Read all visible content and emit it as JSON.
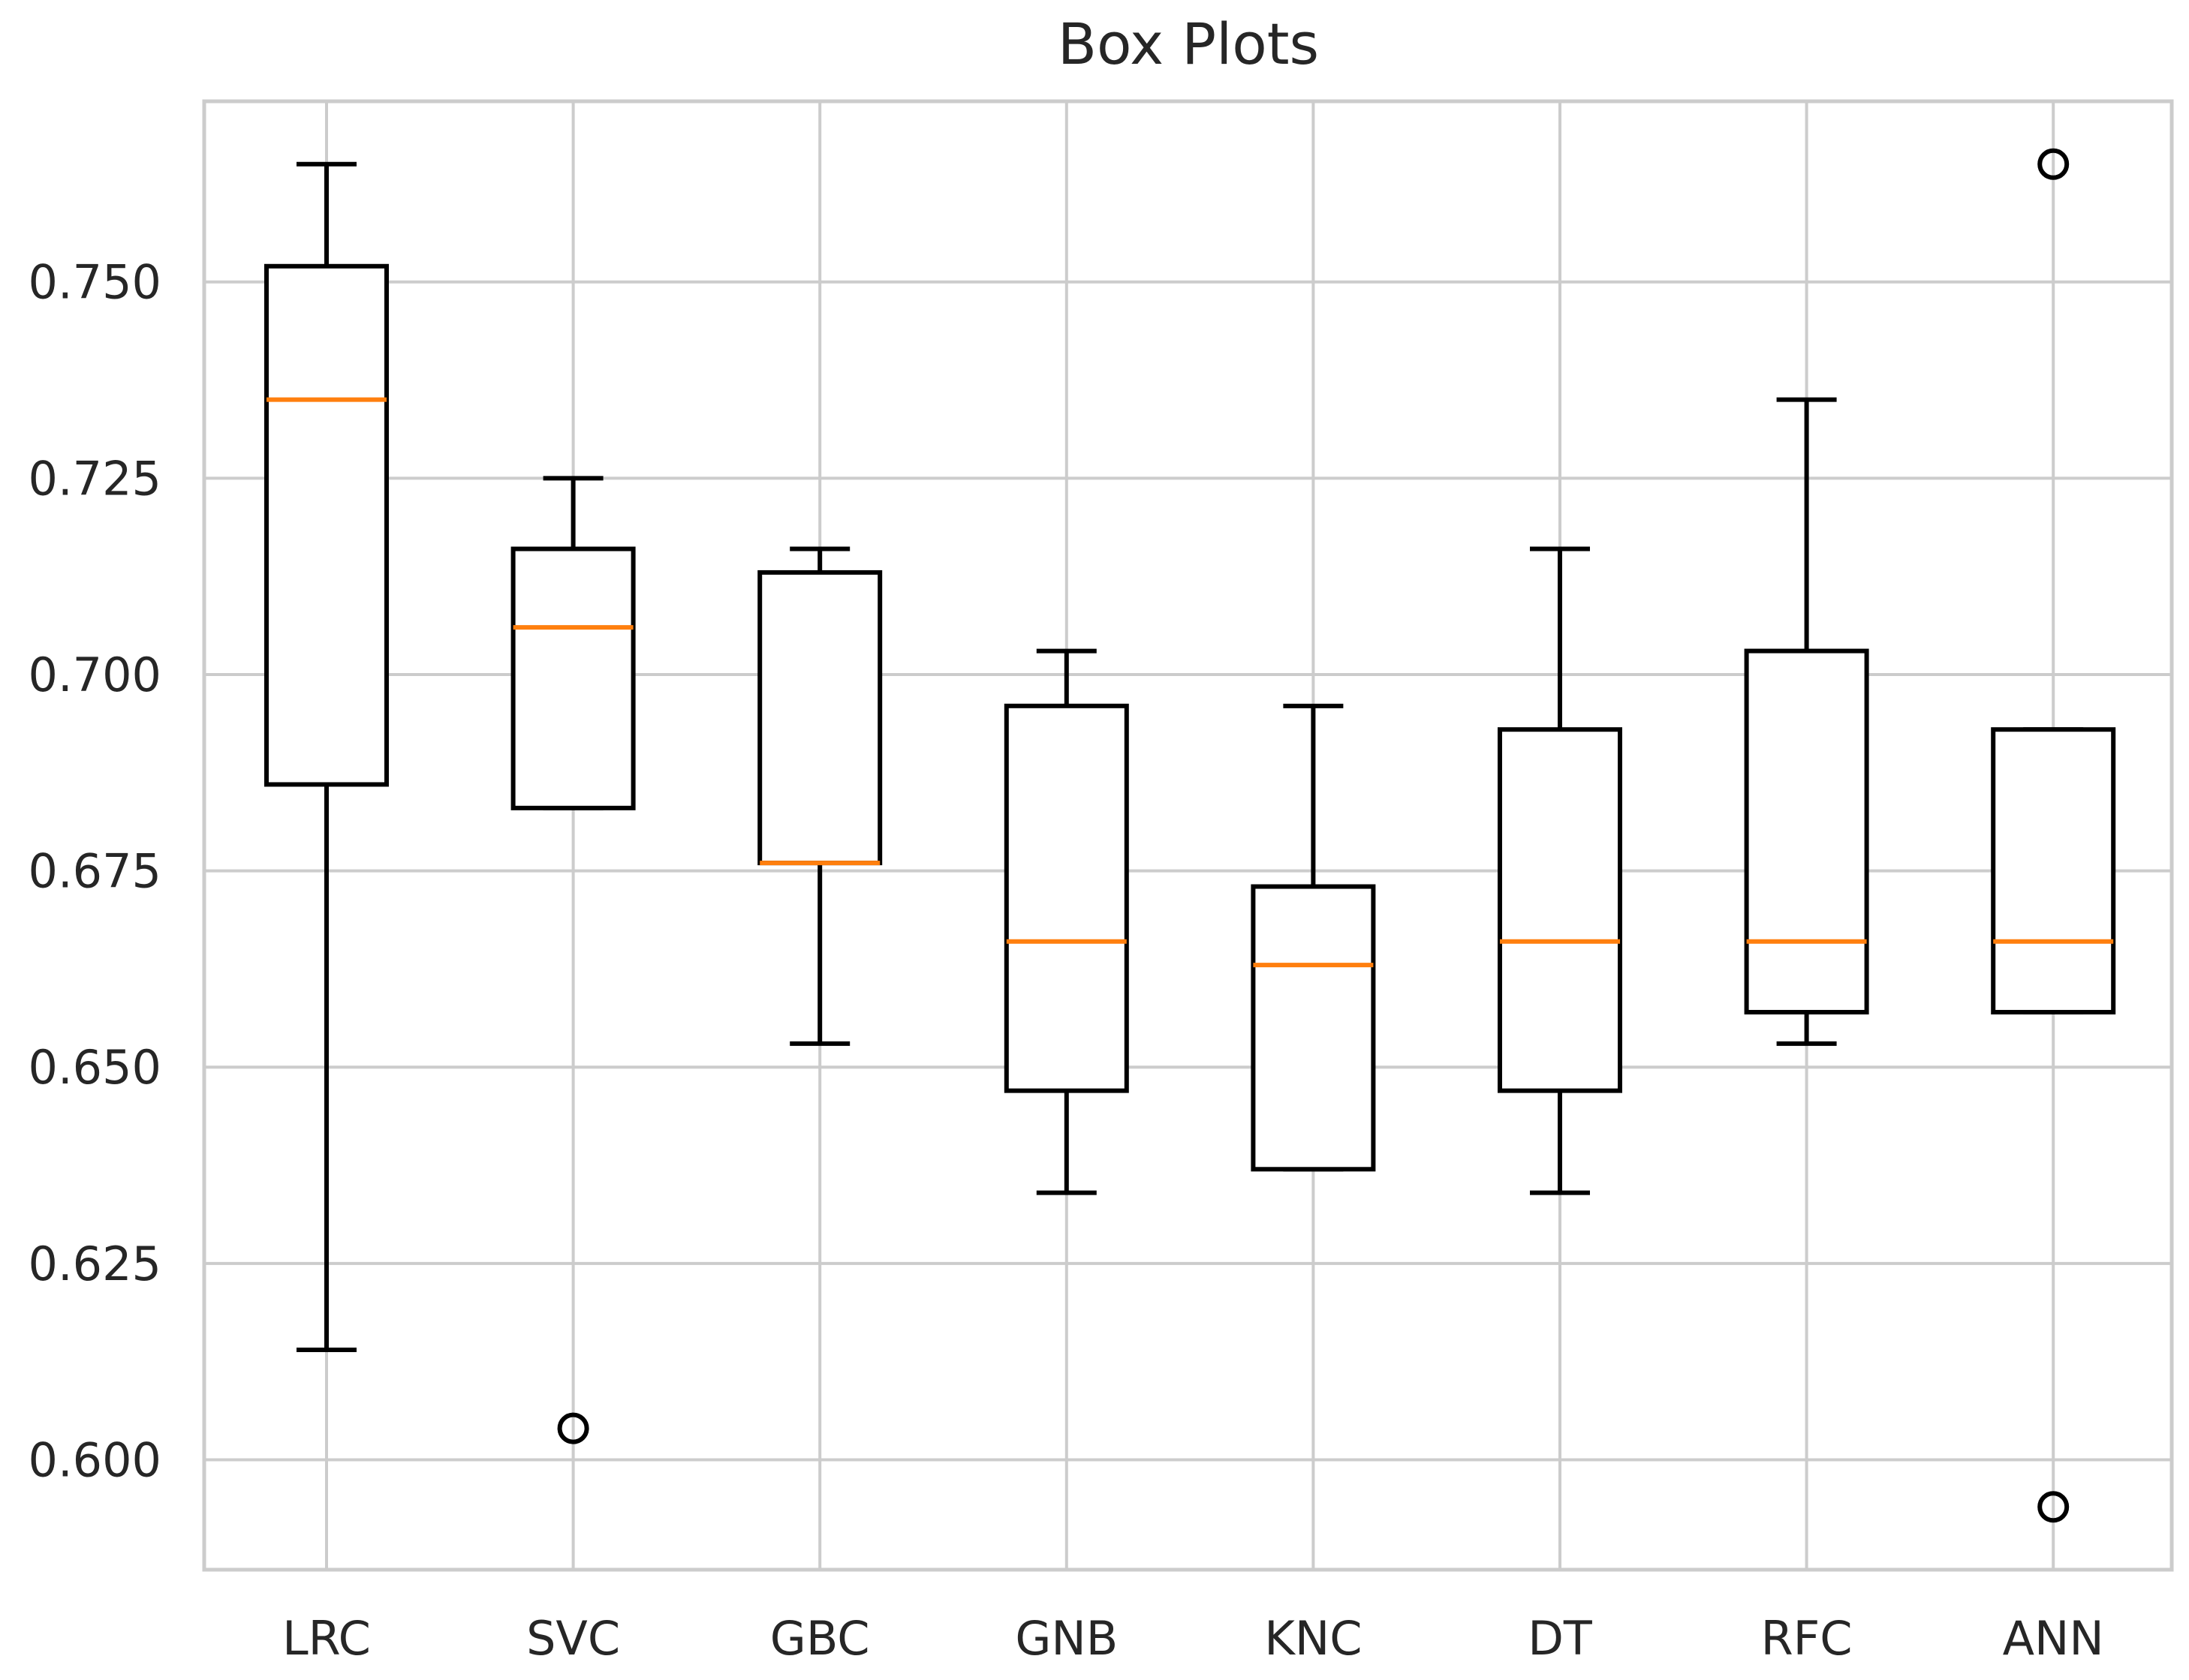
{
  "chart_data": {
    "type": "box",
    "title": "Box Plots",
    "xlabel": "",
    "ylabel": "",
    "ylim": [
      0.586,
      0.773
    ],
    "yticks": [
      0.6,
      0.625,
      0.65,
      0.675,
      0.7,
      0.725,
      0.75
    ],
    "ytick_labels": [
      "0.600",
      "0.625",
      "0.650",
      "0.675",
      "0.700",
      "0.725",
      "0.750"
    ],
    "grid": true,
    "categories": [
      "LRC",
      "SVC",
      "GBC",
      "GNB",
      "KNC",
      "DT",
      "RFC",
      "ANN"
    ],
    "boxes": [
      {
        "name": "LRC",
        "whisker_low": 0.614,
        "q1": 0.686,
        "median": 0.735,
        "q3": 0.752,
        "whisker_high": 0.765,
        "fliers": []
      },
      {
        "name": "SVC",
        "whisker_low": 0.683,
        "q1": 0.683,
        "median": 0.706,
        "q3": 0.716,
        "whisker_high": 0.725,
        "fliers": [
          0.604
        ]
      },
      {
        "name": "GBC",
        "whisker_low": 0.653,
        "q1": 0.676,
        "median": 0.676,
        "q3": 0.713,
        "whisker_high": 0.716,
        "fliers": []
      },
      {
        "name": "GNB",
        "whisker_low": 0.634,
        "q1": 0.647,
        "median": 0.666,
        "q3": 0.696,
        "whisker_high": 0.703,
        "fliers": []
      },
      {
        "name": "KNC",
        "whisker_low": 0.637,
        "q1": 0.637,
        "median": 0.663,
        "q3": 0.673,
        "whisker_high": 0.696,
        "fliers": []
      },
      {
        "name": "DT",
        "whisker_low": 0.634,
        "q1": 0.647,
        "median": 0.666,
        "q3": 0.693,
        "whisker_high": 0.716,
        "fliers": []
      },
      {
        "name": "RFC",
        "whisker_low": 0.653,
        "q1": 0.657,
        "median": 0.666,
        "q3": 0.703,
        "whisker_high": 0.735,
        "fliers": []
      },
      {
        "name": "ANN",
        "whisker_low": 0.657,
        "q1": 0.657,
        "median": 0.666,
        "q3": 0.693,
        "whisker_high": 0.693,
        "fliers": [
          0.765,
          0.594
        ]
      }
    ],
    "colors": {
      "box": "#000000",
      "median": "#ff7f0e",
      "grid": "#cccccc",
      "text": "#262626"
    }
  }
}
